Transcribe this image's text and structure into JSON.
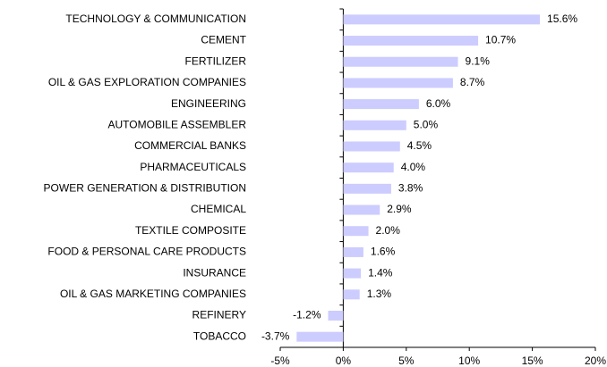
{
  "chart_data": {
    "type": "bar",
    "orientation": "horizontal",
    "categories": [
      "TECHNOLOGY & COMMUNICATION",
      "CEMENT",
      "FERTILIZER",
      "OIL & GAS EXPLORATION COMPANIES",
      "ENGINEERING",
      "AUTOMOBILE ASSEMBLER",
      "COMMERCIAL BANKS",
      "PHARMACEUTICALS",
      "POWER GENERATION & DISTRIBUTION",
      "CHEMICAL",
      "TEXTILE COMPOSITE",
      "FOOD & PERSONAL CARE PRODUCTS",
      "INSURANCE",
      "OIL & GAS MARKETING COMPANIES",
      "REFINERY",
      "TOBACCO"
    ],
    "values": [
      15.6,
      10.7,
      9.1,
      8.7,
      6.0,
      5.0,
      4.5,
      4.0,
      3.8,
      2.9,
      2.0,
      1.6,
      1.4,
      1.3,
      -1.2,
      -3.7
    ],
    "value_labels": [
      "15.6%",
      "10.7%",
      "9.1%",
      "8.7%",
      "6.0%",
      "5.0%",
      "4.5%",
      "4.0%",
      "3.8%",
      "2.9%",
      "2.0%",
      "1.6%",
      "1.4%",
      "1.3%",
      "-1.2%",
      "-3.7%"
    ],
    "color": "#ccccff",
    "xlim": [
      -5,
      20
    ],
    "xticks": [
      {
        "value": -5,
        "label": "-5%"
      },
      {
        "value": 0,
        "label": "0%"
      },
      {
        "value": 5,
        "label": "5%"
      },
      {
        "value": 10,
        "label": "10%"
      },
      {
        "value": 15,
        "label": "15%"
      },
      {
        "value": 20,
        "label": "20%"
      }
    ],
    "grid": false
  }
}
